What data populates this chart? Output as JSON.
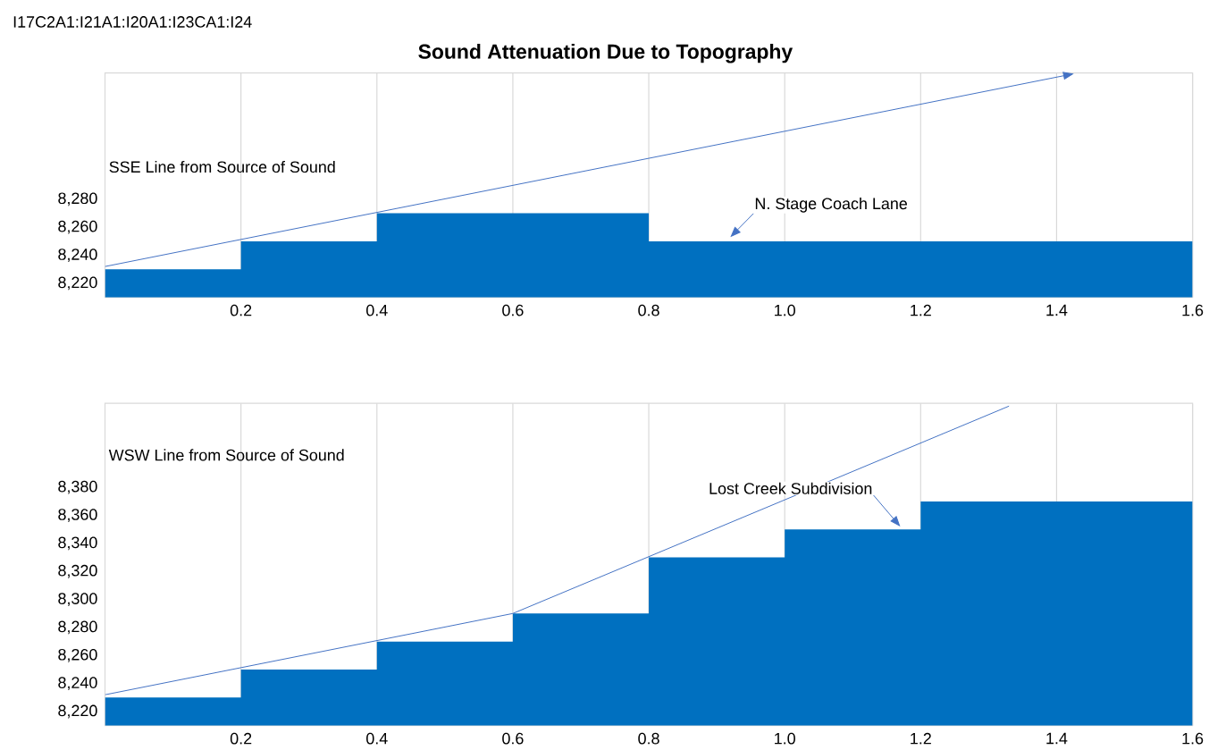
{
  "chart_data": [
    {
      "type": "area",
      "title": "Sound Attenuation Due to Topography",
      "ylabel": "SSE Line from Source of Sound",
      "annotations": [
        "I17C2A1:I21A1:I20A1:I23CA1:I24",
        {
          "text": "N. Stage Coach Lane",
          "x": 0.92,
          "y": 8253
        }
      ],
      "x": [
        0,
        0.2,
        0.2,
        0.4,
        0.4,
        0.8,
        0.8,
        1.6
      ],
      "series": [
        {
          "color": "#0070c0",
          "values": [
            8230,
            8230,
            8250,
            8250,
            8270,
            8270,
            8250,
            8250
          ]
        },
        {
          "type": "line",
          "color": "#4472c4",
          "x": [
            0,
            1.41
          ],
          "values": [
            8232,
            8368
          ]
        }
      ],
      "xlim": [
        0,
        1.6
      ],
      "ylim": [
        8210,
        8370
      ],
      "xticks": [
        0.2,
        0.4,
        0.6,
        0.8,
        {
          "value": 1,
          "label": "1.0"
        },
        1.2,
        1.4,
        1.6
      ],
      "yticks": [
        {
          "value": 8220,
          "label": "8,220"
        },
        {
          "value": 8240,
          "label": "8,240"
        },
        {
          "value": 8260,
          "label": "8,260"
        },
        {
          "value": 8280,
          "label": "8,280"
        }
      ],
      "grid": "x",
      "line_style": "solid"
    },
    {
      "type": "area",
      "ylabel": "WSW Line from Source of Sound",
      "annotations": [
        {
          "text": "Lost Creek Subdivision",
          "x": 1.17,
          "y": 8352
        }
      ],
      "x": [
        0,
        0.2,
        0.2,
        0.4,
        0.4,
        0.6,
        0.6,
        0.8,
        0.8,
        1.0,
        1.0,
        1.2,
        1.2,
        1.6
      ],
      "series": [
        {
          "color": "#0070c0",
          "values": [
            8230,
            8230,
            8250,
            8250,
            8270,
            8270,
            8290,
            8290,
            8330,
            8330,
            8350,
            8350,
            8370,
            8370
          ]
        },
        {
          "type": "line",
          "color": "#4472c4",
          "x": [
            0,
            0.6,
            1.33
          ],
          "values": [
            8232,
            8290,
            8438
          ]
        }
      ],
      "xlim": [
        0,
        1.6
      ],
      "ylim": [
        8210,
        8440
      ],
      "xticks": [
        0.2,
        0.4,
        0.6,
        0.8,
        {
          "value": 1,
          "label": "1.0"
        },
        1.2,
        1.4,
        1.6
      ],
      "yticks": [
        {
          "value": 8220,
          "label": "8,220"
        },
        {
          "value": 8240,
          "label": "8,240"
        },
        {
          "value": 8260,
          "label": "8,260"
        },
        {
          "value": 8280,
          "label": "8,280"
        },
        {
          "value": 8300,
          "label": "8,300"
        },
        {
          "value": 8320,
          "label": "8,320"
        },
        {
          "value": 8340,
          "label": "8,340"
        },
        {
          "value": 8360,
          "label": "8,360"
        },
        {
          "value": 8380,
          "label": "8,380"
        }
      ],
      "grid": "x",
      "line_style": "solid"
    }
  ]
}
